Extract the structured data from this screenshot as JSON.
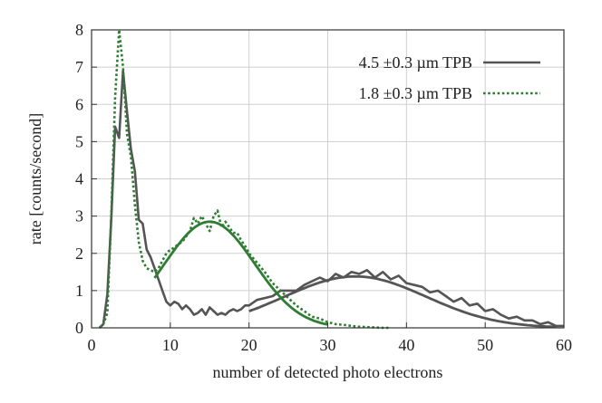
{
  "chart_data": {
    "type": "line",
    "xlabel": "number of detected photo electrons",
    "ylabel": "rate [counts/second]",
    "xlim": [
      0,
      60
    ],
    "ylim": [
      0,
      8
    ],
    "x_ticks": [
      0,
      10,
      20,
      30,
      40,
      50,
      60
    ],
    "y_ticks": [
      0,
      1,
      2,
      3,
      4,
      5,
      6,
      7,
      8
    ],
    "grid": true,
    "legend_position": "top-right",
    "colors": {
      "thick": "#555555",
      "thin": "#2e7d32"
    },
    "series": [
      {
        "name": "4.5 ±0.3 µm TPB",
        "style": "solid",
        "color": "#555555",
        "x": [
          1,
          1.5,
          2,
          2.5,
          3,
          3.5,
          4,
          4.5,
          5,
          5.5,
          6,
          6.5,
          7,
          7.5,
          8,
          8.5,
          9,
          9.5,
          10,
          10.5,
          11,
          11.5,
          12,
          12.5,
          13,
          13.5,
          14,
          14.5,
          15,
          15.5,
          16,
          16.5,
          17,
          17.5,
          18,
          18.5,
          19,
          19.5,
          20,
          21,
          22,
          23,
          24,
          25,
          26,
          27,
          28,
          29,
          30,
          31,
          32,
          33,
          34,
          35,
          36,
          37,
          38,
          39,
          40,
          41,
          42,
          43,
          44,
          45,
          46,
          47,
          48,
          49,
          50,
          51,
          52,
          53,
          54,
          55,
          56,
          57,
          58,
          59,
          60
        ],
        "y": [
          0,
          0.1,
          0.9,
          2.9,
          5.4,
          5.1,
          6.9,
          5.8,
          4.8,
          4.2,
          2.9,
          2.8,
          2.1,
          1.9,
          1.6,
          1.3,
          1.0,
          0.7,
          0.6,
          0.7,
          0.65,
          0.5,
          0.6,
          0.5,
          0.35,
          0.4,
          0.5,
          0.35,
          0.55,
          0.45,
          0.35,
          0.4,
          0.35,
          0.45,
          0.5,
          0.45,
          0.5,
          0.6,
          0.6,
          0.75,
          0.8,
          0.85,
          1.0,
          1.0,
          1.0,
          1.15,
          1.25,
          1.35,
          1.25,
          1.45,
          1.35,
          1.5,
          1.45,
          1.55,
          1.35,
          1.5,
          1.3,
          1.4,
          1.2,
          1.15,
          1.1,
          0.95,
          1.0,
          0.85,
          0.7,
          0.8,
          0.6,
          0.65,
          0.45,
          0.5,
          0.35,
          0.25,
          0.3,
          0.2,
          0.2,
          0.1,
          0.15,
          0.05,
          0.05
        ]
      },
      {
        "name": "1.8 ±0.3 µm TPB",
        "style": "dotted",
        "color": "#2e7d32",
        "x": [
          1,
          1.5,
          2,
          2.5,
          3,
          3.5,
          4,
          4.5,
          5,
          5.5,
          6,
          6.5,
          7,
          7.5,
          8,
          8.5,
          9,
          9.5,
          10,
          10.5,
          11,
          11.5,
          12,
          12.5,
          13,
          13.5,
          14,
          14.5,
          15,
          15.5,
          16,
          16.5,
          17,
          17.5,
          18,
          18.5,
          19,
          19.5,
          20,
          21,
          22,
          23,
          24,
          25,
          26,
          27,
          28,
          29,
          30,
          31,
          32,
          33,
          34,
          35,
          36,
          37,
          38
        ],
        "y": [
          0,
          0.1,
          0.4,
          3.0,
          6.2,
          8.0,
          7.0,
          5.2,
          4.6,
          3.3,
          2.3,
          1.8,
          1.6,
          1.55,
          1.5,
          1.6,
          1.8,
          2.0,
          2.1,
          2.15,
          2.25,
          2.3,
          2.45,
          2.6,
          2.95,
          2.8,
          3.0,
          2.8,
          2.6,
          3.0,
          3.15,
          2.7,
          2.85,
          2.7,
          2.55,
          2.55,
          2.35,
          2.2,
          2.0,
          1.75,
          1.5,
          1.2,
          1.0,
          0.8,
          0.6,
          0.45,
          0.3,
          0.25,
          0.15,
          0.1,
          0.08,
          0.05,
          0.03,
          0.02,
          0.01,
          0.0,
          0.0
        ]
      }
    ],
    "fits": [
      {
        "color": "#555555",
        "amplitude": 1.38,
        "mean": 33.5,
        "sigma": 9.0,
        "x_range": [
          20,
          59
        ]
      },
      {
        "color": "#2e7d32",
        "amplitude": 2.85,
        "mean": 15.0,
        "sigma": 5.7,
        "x_range": [
          8,
          30
        ]
      }
    ]
  }
}
